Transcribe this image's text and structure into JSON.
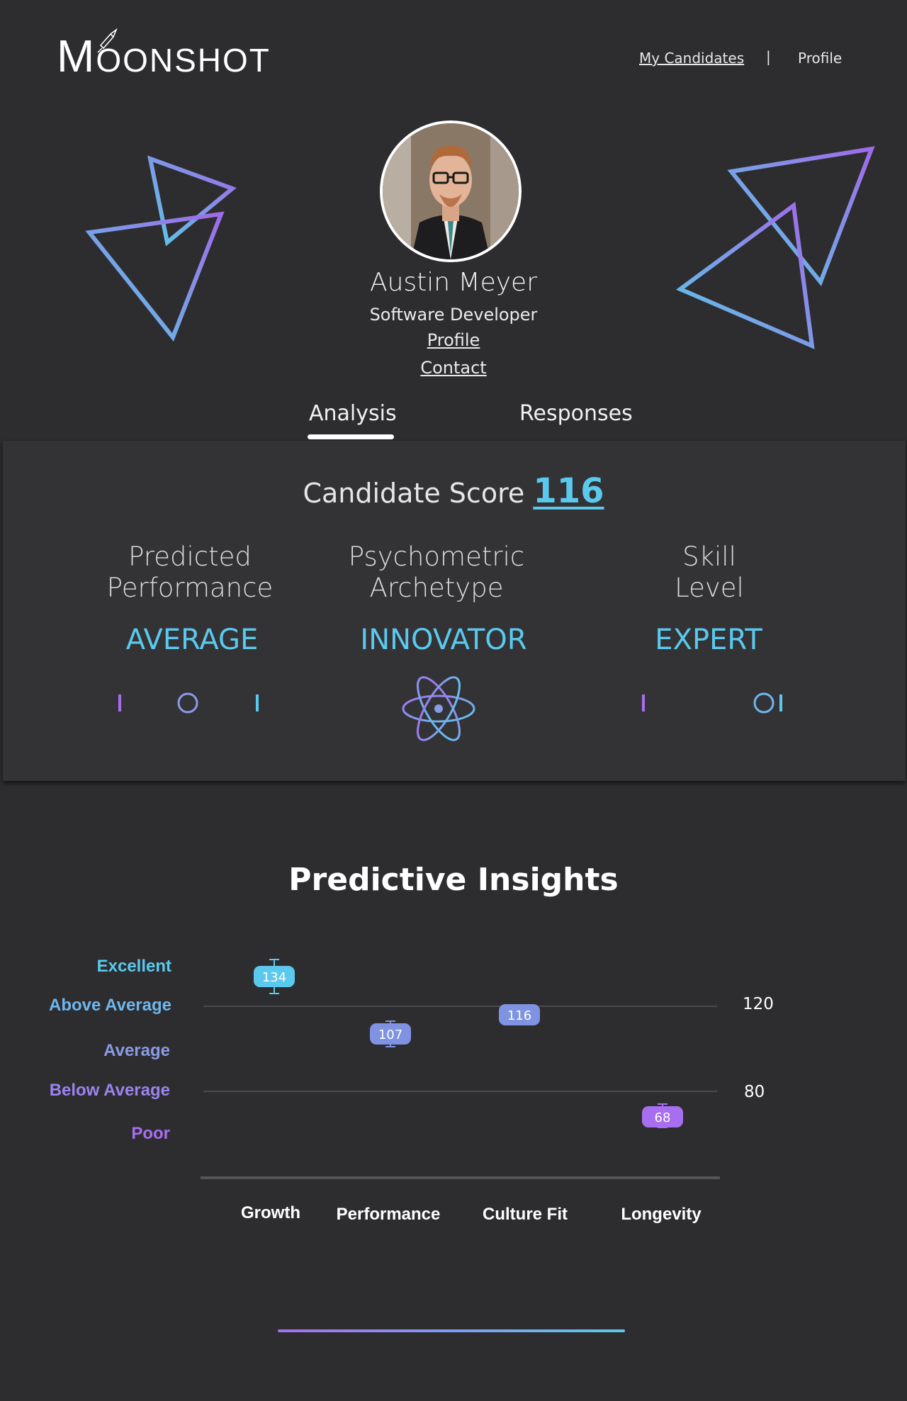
{
  "header": {
    "logo_text": "OONSHOT",
    "logo_initial": "M",
    "nav": [
      {
        "label": "My Candidates"
      },
      {
        "separator": "|"
      },
      {
        "label": "Profile"
      }
    ]
  },
  "candidate": {
    "name": "Austin Meyer",
    "title": "Software Developer",
    "profile_link": "Profile",
    "contact_link": "Contact"
  },
  "tabs": [
    {
      "label": "Analysis",
      "active": true
    },
    {
      "label": "Responses",
      "active": false
    }
  ],
  "score": {
    "label": "Candidate Score",
    "value": "116"
  },
  "metrics": [
    {
      "title_line1": "Predicted",
      "title_line2": "Performance",
      "value": "AVERAGE",
      "indicator": "slider",
      "level": 0.5
    },
    {
      "title_line1": "Psychometric",
      "title_line2": "Archetype",
      "value": "INNOVATOR",
      "indicator": "atom-icon"
    },
    {
      "title_line1": "Skill",
      "title_line2": "Level",
      "value": "EXPERT",
      "indicator": "slider",
      "level": 0.88
    }
  ],
  "colors": {
    "accent_blue": "#5bc9ee",
    "accent_purple": "#a76ff0",
    "background": "#2d2d2f",
    "panel": "#333336"
  },
  "chart_data": {
    "type": "scatter",
    "title": "Predictive Insights",
    "categories": [
      "Growth",
      "Performance",
      "Culture Fit",
      "Longevity"
    ],
    "values": [
      134,
      107,
      116,
      68
    ],
    "error_ranges": [
      [
        126,
        142
      ],
      [
        101,
        113
      ],
      [
        112,
        120
      ],
      [
        63,
        74
      ]
    ],
    "y_band_labels": [
      "Excellent",
      "Above Average",
      "Average",
      "Below Average",
      "Poor"
    ],
    "reference_lines": [
      120,
      80
    ],
    "ylim": [
      40,
      160
    ],
    "grid": true
  }
}
